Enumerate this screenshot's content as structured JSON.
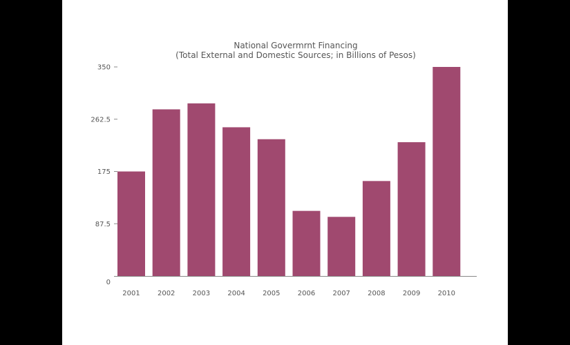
{
  "chart_data": {
    "type": "bar",
    "title": "National Govermrnt Financing",
    "subtitle": "(Total External and Domestic Sources; in Billions of Pesos)",
    "xlabel": "",
    "ylabel": "",
    "categories": [
      "2001",
      "2002",
      "2003",
      "2004",
      "2005",
      "2006",
      "2007",
      "2008",
      "2009",
      "2010"
    ],
    "values": [
      175,
      279,
      289,
      249,
      229,
      109,
      99,
      159,
      224,
      350
    ],
    "ylim": [
      0,
      350
    ],
    "yticks": [
      0,
      87.5,
      175,
      262.5,
      350
    ],
    "ytick_labels": [
      "0",
      "87.5",
      "175",
      "262.5",
      "350"
    ],
    "grid": false,
    "legend": "none",
    "colors": {
      "bar": "#a0496f",
      "axis": "#888888",
      "text": "#555555",
      "background": "#ffffff",
      "frame": "#000000"
    }
  }
}
